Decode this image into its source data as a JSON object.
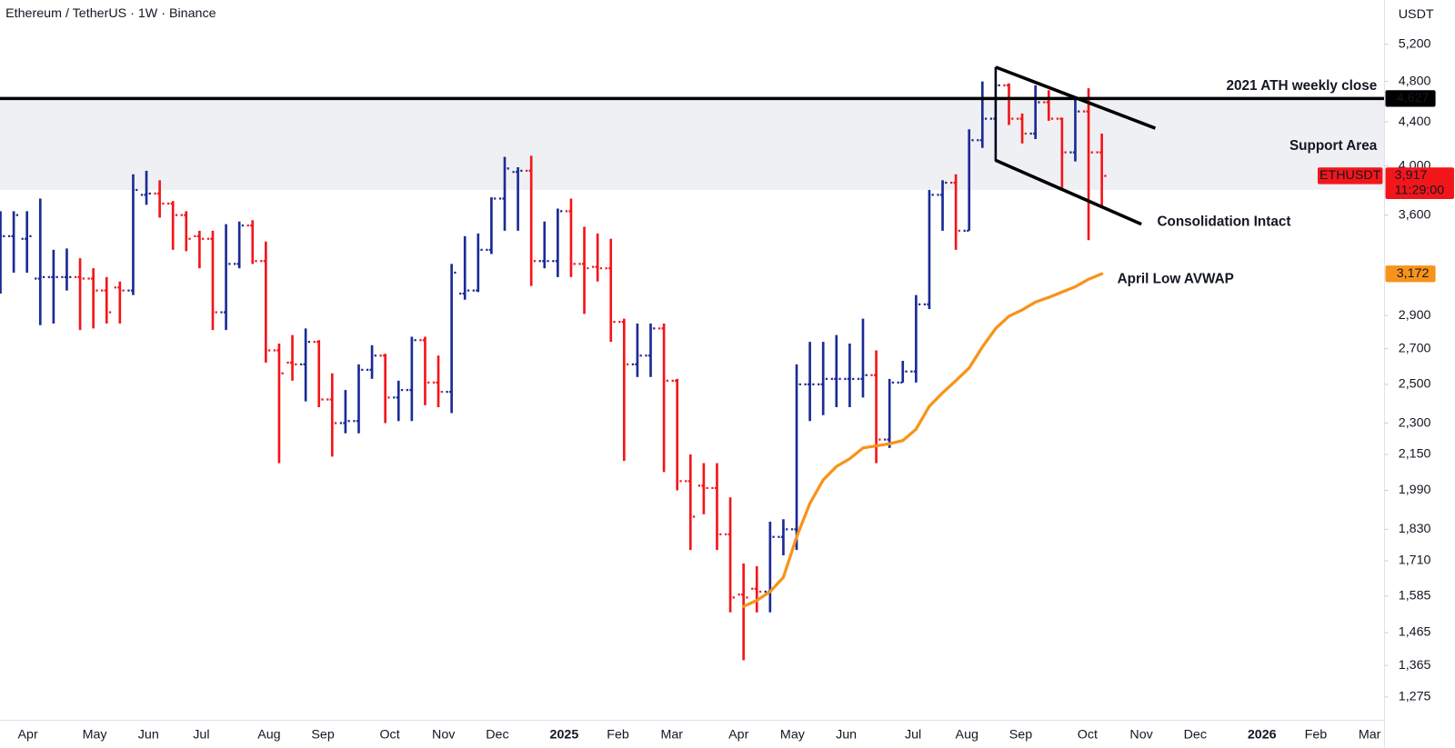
{
  "chart_data": {
    "type": "ohlc",
    "title": "Ethereum / TetherUS · 1W · Binance",
    "currency": "USDT",
    "log_scale": true,
    "ylim": [
      1213,
      5720
    ],
    "yticks": [
      {
        "value": 5200,
        "label": "5,200"
      },
      {
        "value": 4800,
        "label": "4,800"
      },
      {
        "value": 4400,
        "label": "4,400"
      },
      {
        "value": 4000,
        "label": "4,000"
      },
      {
        "value": 3600,
        "label": "3,600"
      },
      {
        "value": 2900,
        "label": "2,900"
      },
      {
        "value": 2700,
        "label": "2,700"
      },
      {
        "value": 2500,
        "label": "2,500"
      },
      {
        "value": 2300,
        "label": "2,300"
      },
      {
        "value": 2150,
        "label": "2,150"
      },
      {
        "value": 1990,
        "label": "1,990"
      },
      {
        "value": 1830,
        "label": "1,830"
      },
      {
        "value": 1710,
        "label": "1,710"
      },
      {
        "value": 1585,
        "label": "1,585"
      },
      {
        "value": 1465,
        "label": "1,465"
      },
      {
        "value": 1365,
        "label": "1,365"
      },
      {
        "value": 1275,
        "label": "1,275"
      }
    ],
    "xlabels": [
      "Apr",
      "May",
      "Jun",
      "Jul",
      "Aug",
      "Sep",
      "Oct",
      "Nov",
      "Dec",
      "2025",
      "Feb",
      "Mar",
      "Apr",
      "May",
      "Jun",
      "Jul",
      "Aug",
      "Sep",
      "Oct",
      "Nov",
      "Dec",
      "2026",
      "Feb",
      "Mar"
    ],
    "up_color": "#1c2b94",
    "down_color": "#f2161b",
    "open": [
      3300,
      3440,
      3420,
      3140,
      3150,
      3150,
      3150,
      3140,
      3060,
      3080,
      3060,
      3760,
      3770,
      3690,
      3600,
      3440,
      3420,
      2920,
      3240,
      3520,
      3260,
      2690,
      2620,
      2610,
      2740,
      2420,
      2300,
      2310,
      2580,
      2660,
      2430,
      2470,
      2750,
      2510,
      2460,
      3040,
      3060,
      3340,
      3730,
      3950,
      3960,
      3260,
      3260,
      3630,
      3240,
      3220,
      3210,
      2860,
      2610,
      2660,
      2820,
      2520,
      2030,
      2010,
      2000,
      1810,
      1590,
      1610,
      1600,
      1800,
      1830,
      2500,
      2500,
      2530,
      2530,
      2530,
      2550,
      2220,
      2510,
      2570,
      2970,
      3760,
      3860,
      3480,
      4230,
      4430,
      4760,
      4430,
      4290,
      4590,
      4430,
      4120,
      4500,
      4120
    ],
    "high": [
      3630,
      3630,
      3630,
      3730,
      3340,
      3350,
      3280,
      3210,
      3150,
      3120,
      3930,
      3960,
      3880,
      3710,
      3630,
      3480,
      3480,
      3530,
      3550,
      3560,
      3400,
      2730,
      2780,
      2820,
      2750,
      2560,
      2470,
      2610,
      2720,
      2670,
      2520,
      2770,
      2770,
      2660,
      3240,
      3440,
      3460,
      3740,
      4080,
      3990,
      4090,
      3550,
      3650,
      3730,
      3510,
      3460,
      3420,
      2880,
      2850,
      2850,
      2850,
      2530,
      2150,
      2110,
      2110,
      1960,
      1700,
      1690,
      1860,
      1870,
      2610,
      2740,
      2740,
      2780,
      2730,
      2880,
      2690,
      2530,
      2630,
      3030,
      3800,
      3880,
      3930,
      4330,
      4800,
      4950,
      4780,
      4480,
      4760,
      4710,
      4440,
      4640,
      4730,
      4290
    ],
    "low": [
      3040,
      3180,
      3180,
      2840,
      2850,
      3060,
      2810,
      2820,
      2850,
      2850,
      3030,
      3680,
      3580,
      3340,
      3330,
      3210,
      2810,
      2810,
      3210,
      3240,
      2620,
      2110,
      2520,
      2410,
      2380,
      2140,
      2250,
      2250,
      2530,
      2300,
      2310,
      2310,
      2390,
      2380,
      2350,
      3000,
      3050,
      3310,
      3480,
      3480,
      3090,
      3210,
      3150,
      3150,
      2910,
      3120,
      2740,
      2120,
      2540,
      2540,
      2070,
      1990,
      1750,
      1890,
      1750,
      1530,
      1380,
      1530,
      1530,
      1730,
      1750,
      2310,
      2340,
      2380,
      2380,
      2430,
      2110,
      2180,
      2510,
      2510,
      2940,
      3480,
      3340,
      3480,
      4160,
      4040,
      4370,
      4200,
      4240,
      4410,
      3800,
      4040,
      3410,
      3670
    ],
    "close": [
      3440,
      3600,
      3440,
      3150,
      3150,
      3150,
      3140,
      3060,
      2920,
      3060,
      3800,
      3770,
      3690,
      3600,
      3420,
      3420,
      2920,
      3240,
      3520,
      3260,
      2690,
      2560,
      2610,
      2740,
      2420,
      2300,
      2310,
      2580,
      2660,
      2430,
      2470,
      2750,
      2510,
      2460,
      3180,
      3060,
      3340,
      3730,
      3980,
      3960,
      3260,
      3260,
      3630,
      3240,
      3210,
      3210,
      2860,
      2610,
      2660,
      2820,
      2520,
      2030,
      1880,
      2000,
      1810,
      1580,
      1580,
      1600,
      1800,
      1830,
      2500,
      2500,
      2530,
      2530,
      2530,
      2550,
      2220,
      2510,
      2570,
      2970,
      3760,
      3860,
      3480,
      4230,
      4430,
      4760,
      4430,
      4290,
      4590,
      4430,
      4120,
      4500,
      4120,
      3917
    ],
    "series": [
      {
        "name": "April Low AVWAP",
        "color": "#f7931a",
        "values": [
          null,
          null,
          null,
          null,
          null,
          null,
          null,
          null,
          null,
          null,
          null,
          null,
          null,
          null,
          null,
          null,
          null,
          null,
          null,
          null,
          null,
          null,
          null,
          null,
          null,
          null,
          null,
          null,
          null,
          null,
          null,
          null,
          null,
          null,
          null,
          null,
          null,
          null,
          null,
          null,
          null,
          null,
          null,
          null,
          null,
          null,
          null,
          null,
          null,
          null,
          null,
          null,
          null,
          null,
          null,
          null,
          1550,
          1570,
          1600,
          1650,
          1800,
          1935,
          2035,
          2095,
          2130,
          2180,
          2190,
          2200,
          2215,
          2270,
          2385,
          2455,
          2520,
          2590,
          2710,
          2820,
          2895,
          2935,
          2985,
          3015,
          3050,
          3085,
          3135,
          3172
        ],
        "last_label": {
          "value": 3172,
          "label": "3,172"
        }
      }
    ],
    "price_line": {
      "value": 4627,
      "label": "4,627",
      "annotation": "2021 ATH weekly close",
      "color": "#000000"
    },
    "last_price": {
      "value": 3917,
      "label": "3,917",
      "symbol": "ETHUSDT",
      "countdown": "11:29:00"
    },
    "support_zone": {
      "range": [
        3800,
        4610
      ],
      "label": "Support Area",
      "color": "#eef0f3"
    },
    "channel": {
      "upper": [
        4950,
        4340
      ],
      "lower": [
        4050,
        3530
      ],
      "label": "Consolidation Intact",
      "color": "#000000"
    }
  }
}
